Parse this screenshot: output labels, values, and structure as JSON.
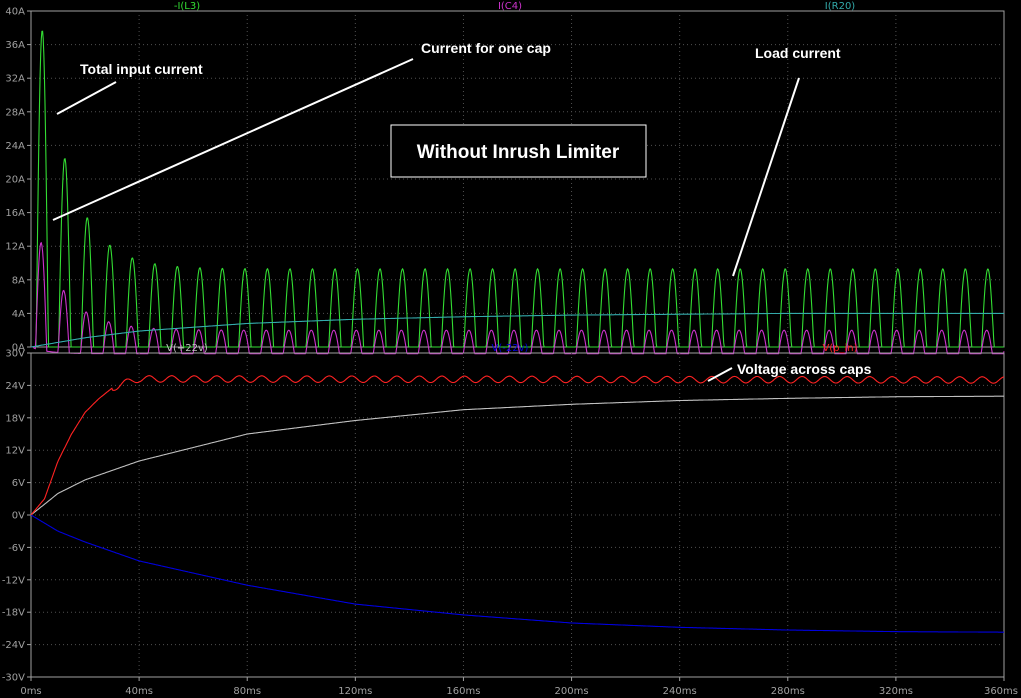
{
  "chart_data": [
    {
      "type": "line",
      "panel": "top",
      "ylabel_unit": "A",
      "xlim": [
        0,
        360
      ],
      "ylim": [
        0,
        40
      ],
      "y_ticks": [
        "40A",
        "36A",
        "32A",
        "28A",
        "24A",
        "20A",
        "16A",
        "12A",
        "8A",
        "4A",
        "0A"
      ],
      "grid": true,
      "series": [
        {
          "name": "-I(L3)",
          "color": "#33dd33",
          "description": "full-wave rectified pulse train",
          "period_ms": 8.33,
          "first_peak": 37.7,
          "steady_peak": 9.3,
          "baseline": 0
        },
        {
          "name": "I(C4)",
          "color": "#cc33cc",
          "description": "capacitor charging pulses",
          "period_ms": 8.33,
          "first_peak": 12.0,
          "steady_peak": 2.0,
          "steady_min": -0.8
        },
        {
          "name": "I(R20)",
          "color": "#33aaaa",
          "description": "slowly rising load current",
          "x": [
            0,
            20,
            40,
            80,
            120,
            160,
            200,
            280,
            360
          ],
          "y": [
            0,
            1.1,
            1.9,
            2.8,
            3.3,
            3.6,
            3.8,
            4.0,
            4.0
          ]
        }
      ],
      "title": "Without Inrush Limiter",
      "annotations": [
        "Total input current",
        "Current for one cap",
        "Load current"
      ]
    },
    {
      "type": "line",
      "panel": "bottom",
      "ylabel_unit": "V",
      "xlim": [
        0,
        360
      ],
      "ylim": [
        -30,
        30
      ],
      "y_ticks": [
        "30V",
        "24V",
        "18V",
        "12V",
        "6V",
        "0V",
        "-6V",
        "-12V",
        "-18V",
        "-24V",
        "-30V"
      ],
      "grid": true,
      "series": [
        {
          "name": "V(+22v)",
          "color": "#c0c0c0",
          "x": [
            0,
            10,
            20,
            40,
            80,
            120,
            160,
            200,
            240,
            280,
            320,
            360
          ],
          "y": [
            0,
            4,
            6.5,
            10,
            15,
            17.5,
            19.5,
            20.5,
            21.2,
            21.6,
            21.9,
            22.0
          ]
        },
        {
          "name": "V(-22v)",
          "color": "#0000dd",
          "x": [
            0,
            10,
            20,
            40,
            80,
            120,
            160,
            200,
            240,
            280,
            320,
            360
          ],
          "y": [
            0,
            -3,
            -5,
            -8.5,
            -13,
            -16.5,
            -18.5,
            -20,
            -20.8,
            -21.3,
            -21.6,
            -21.7
          ]
        },
        {
          "name": "V(p_in)",
          "color": "#ff2222",
          "description": "rises to ~25V with ripple",
          "x": [
            0,
            5,
            10,
            15,
            20,
            25,
            30,
            35,
            40,
            360
          ],
          "y": [
            0,
            3,
            10,
            15,
            19,
            21.5,
            23.5,
            24.5,
            25.2,
            25.0
          ],
          "ripple": 0.6
        }
      ],
      "annotations": [
        "Voltage across caps"
      ]
    }
  ],
  "x_ticks": [
    "0ms",
    "40ms",
    "80ms",
    "120ms",
    "160ms",
    "200ms",
    "240ms",
    "280ms",
    "320ms",
    "360ms"
  ],
  "colors": {
    "background": "#000000",
    "frame": "#a0a0a0",
    "grid": "#505050"
  }
}
